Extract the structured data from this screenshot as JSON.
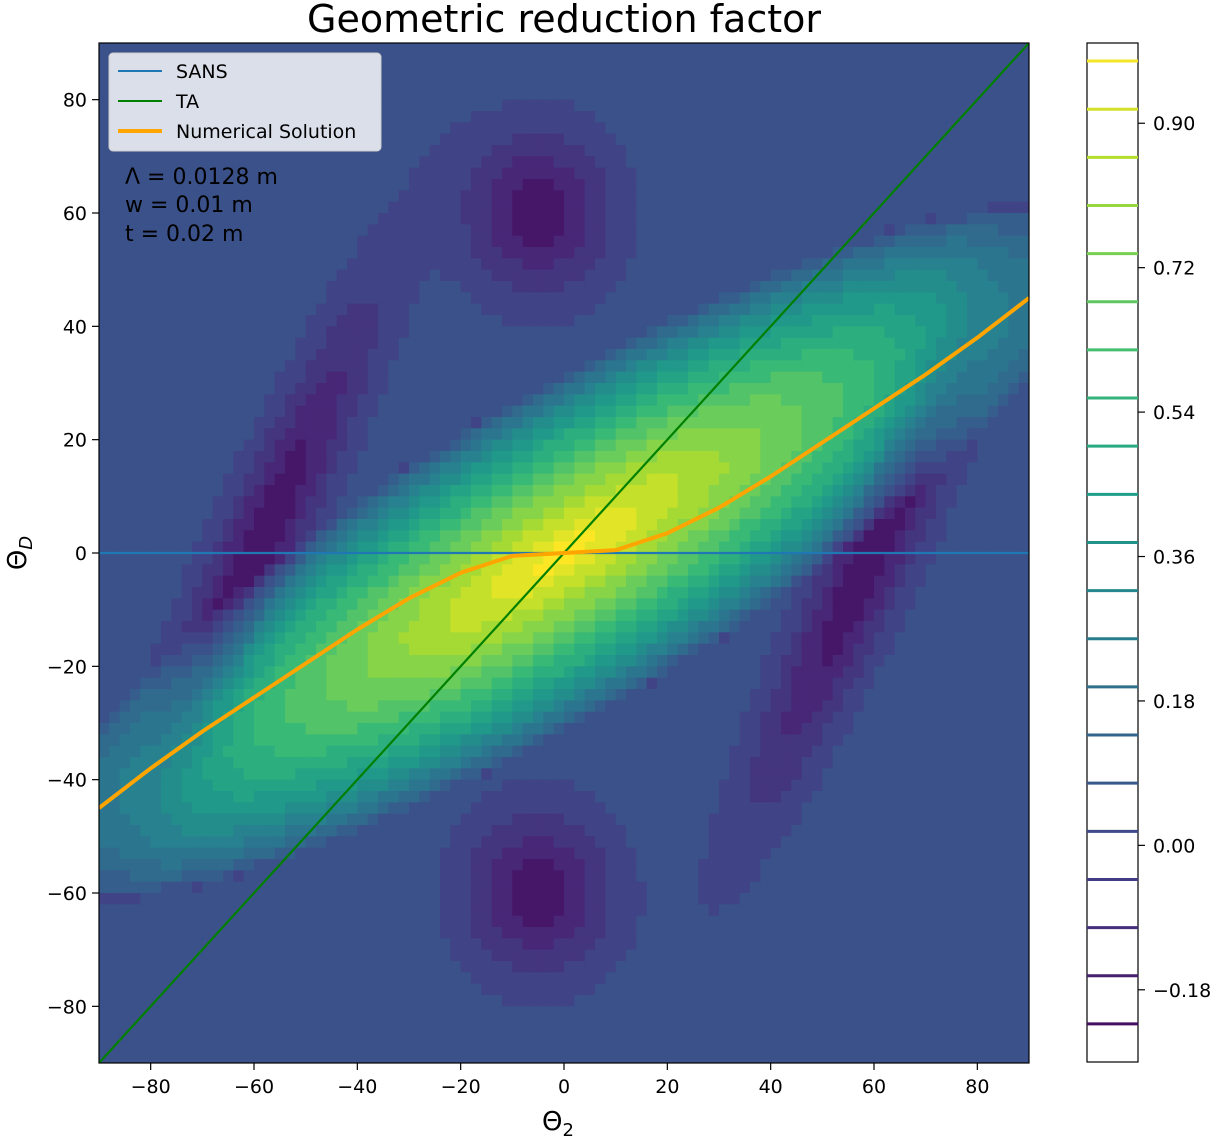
{
  "chart_data": {
    "type": "heatmap",
    "title": "Geometric reduction factor",
    "xlabel": "Θ",
    "xlabel_sub": "2",
    "ylabel": "Θ",
    "ylabel_sub": "D",
    "xlim": [
      -90,
      90
    ],
    "ylim": [
      -90,
      90
    ],
    "xticks": [
      -80,
      -60,
      -40,
      -20,
      0,
      20,
      40,
      60,
      80
    ],
    "yticks": [
      -80,
      -60,
      -40,
      -20,
      0,
      20,
      40,
      60,
      80
    ],
    "grid": false,
    "colormap": "viridis",
    "contour_levels": 20,
    "colorbar": {
      "range": [
        -0.27,
        1.0
      ],
      "ticks": [
        -0.18,
        0.0,
        0.18,
        0.36,
        0.54,
        0.72,
        0.9
      ],
      "tick_labels": [
        "−0.18",
        "0.00",
        "0.18",
        "0.36",
        "0.54",
        "0.72",
        "0.90"
      ],
      "levels": [
        -0.2225,
        -0.1625,
        -0.1025,
        -0.0425,
        0.0175,
        0.0775,
        0.1375,
        0.1975,
        0.2575,
        0.3175,
        0.3775,
        0.4375,
        0.4975,
        0.5575,
        0.6175,
        0.6775,
        0.7375,
        0.7975,
        0.8575,
        0.9175,
        0.9775
      ]
    },
    "series": [
      {
        "name": "SANS",
        "color": "#1f77b4",
        "x": [
          -90,
          90
        ],
        "y": [
          0,
          0
        ]
      },
      {
        "name": "TA",
        "color": "#008000",
        "x": [
          -90,
          90
        ],
        "y": [
          -90,
          90
        ]
      },
      {
        "name": "Numerical Solution",
        "color": "#ffa500",
        "x": [
          -90,
          -80,
          -70,
          -60,
          -50,
          -40,
          -30,
          -20,
          -10,
          0,
          10,
          20,
          30,
          40,
          50,
          60,
          70,
          80,
          90
        ],
        "y": [
          -45,
          -38,
          -31.5,
          -25.5,
          -19.5,
          -13.5,
          -8,
          -3.5,
          -0.5,
          0,
          0.5,
          3.5,
          8,
          13.5,
          19.5,
          25.5,
          31.5,
          38,
          45
        ]
      }
    ],
    "legend_position": "upper-left",
    "annotations": [
      "Λ = 0.0128 m",
      "w = 0.01 m",
      "t = 0.02 m"
    ]
  },
  "colors": {
    "viridis": [
      "#440154",
      "#482878",
      "#3e4989",
      "#31688e",
      "#26828e",
      "#1f9e89",
      "#35b779",
      "#6ece58",
      "#b5de2b",
      "#fde725"
    ]
  }
}
